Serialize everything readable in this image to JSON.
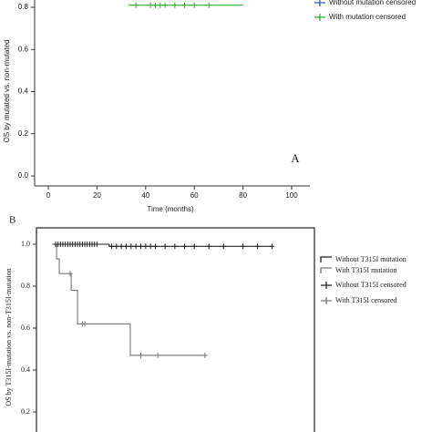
{
  "chart_data": [
    {
      "type": "step",
      "annotation": "A",
      "xlabel": "Time (months)",
      "ylabel": "OS by mutated vs. non-mutated",
      "xlim": [
        0,
        100
      ],
      "xticks": [
        0,
        20,
        40,
        60,
        80,
        100
      ],
      "ylim": [
        0,
        1
      ],
      "yticks": [
        {
          "value": 0,
          "label": "0.0"
        },
        0.2,
        0.4,
        0.6,
        0.8
      ],
      "series": [
        {
          "name": "Without mutation censored",
          "color": "#3b5bb5",
          "style": "censor",
          "x": [],
          "values": []
        },
        {
          "color": "#3aaa35",
          "style": "step",
          "x": [
            33,
            80
          ],
          "values": [
            0.81,
            0.81
          ]
        },
        {
          "name": "With mutation censored",
          "color": "#3aaa35",
          "style": "censor",
          "x": [
            36,
            42,
            44,
            46,
            48,
            52,
            56,
            60,
            66
          ],
          "values": [
            0.81,
            0.81,
            0.81,
            0.81,
            0.81,
            0.81,
            0.81,
            0.81,
            0.81
          ]
        }
      ]
    },
    {
      "type": "step",
      "annotation": "B",
      "ylabel": "OS by T315I-mutation vs. non-T315I-mutation",
      "xlim": [
        0,
        100
      ],
      "ylim": [
        0,
        1.08
      ],
      "yticks": [
        0.2,
        0.4,
        {
          "value": 0.6,
          "label": "0.6"
        },
        0.8,
        {
          "value": 1,
          "label": "1.0"
        }
      ],
      "series": [
        {
          "name": "Without T315I mutation",
          "color": "#222222",
          "style": "step",
          "x": [
            1.5,
            25,
            92
          ],
          "values": [
            1,
            0.99,
            0.99
          ]
        },
        {
          "name": "With T315I mutation",
          "color": "#777777",
          "style": "step",
          "x": [
            1.5,
            3.4,
            4.5,
            9.4,
            12,
            33.7,
            64.4
          ],
          "values": [
            1,
            0.93,
            0.86,
            0.78,
            0.62,
            0.47,
            0.47
          ]
        },
        {
          "name": "Without T315I censored",
          "color": "#222222",
          "style": "censor",
          "x": [
            3,
            4,
            5,
            6,
            7,
            8,
            9,
            10,
            11,
            12,
            13,
            14,
            15,
            16,
            17,
            18,
            19,
            20,
            26,
            28,
            30,
            32,
            34,
            36,
            38,
            40,
            42,
            44,
            48,
            52,
            56,
            60,
            66,
            72,
            80,
            86,
            92
          ],
          "values": [
            1,
            1,
            1,
            1,
            1,
            1,
            1,
            1,
            1,
            1,
            1,
            1,
            1,
            1,
            1,
            1,
            1,
            1,
            0.99,
            0.99,
            0.99,
            0.99,
            0.99,
            0.99,
            0.99,
            0.99,
            0.99,
            0.99,
            0.99,
            0.99,
            0.99,
            0.99,
            0.99,
            0.99,
            0.99,
            0.99,
            0.99
          ]
        },
        {
          "name": "With T315I censored",
          "color": "#777777",
          "style": "censor",
          "x": [
            9,
            14,
            15,
            38,
            45,
            64.4
          ],
          "values": [
            0.86,
            0.62,
            0.62,
            0.47,
            0.47,
            0.47
          ]
        }
      ]
    }
  ]
}
